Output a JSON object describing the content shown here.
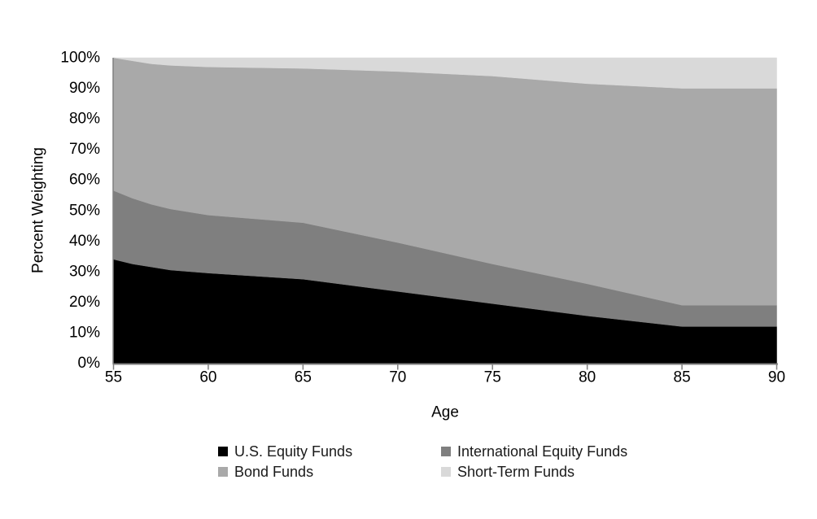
{
  "chart_data": {
    "type": "area",
    "stacked": true,
    "title": "",
    "xlabel": "Age",
    "ylabel": "Percent Weighting",
    "x": [
      55,
      56,
      57,
      58,
      60,
      65,
      70,
      75,
      80,
      85,
      90
    ],
    "x_ticks": [
      55,
      60,
      65,
      70,
      75,
      80,
      85,
      90
    ],
    "y_ticks": [
      "0%",
      "10%",
      "20%",
      "30%",
      "40%",
      "50%",
      "60%",
      "70%",
      "80%",
      "90%",
      "100%"
    ],
    "xlim": [
      55,
      90
    ],
    "ylim": [
      0,
      100
    ],
    "grid": false,
    "legend_position": "bottom",
    "series": [
      {
        "name": "U.S. Equity Funds",
        "color": "#000000",
        "values": [
          34.0,
          32.5,
          31.5,
          30.5,
          29.5,
          27.5,
          23.5,
          19.5,
          15.5,
          12.0,
          12.0
        ]
      },
      {
        "name": "International Equity Funds",
        "color": "#7f7f7f",
        "values": [
          22.5,
          21.5,
          20.5,
          20.0,
          19.0,
          18.5,
          16.0,
          13.0,
          10.5,
          7.0,
          7.0
        ]
      },
      {
        "name": "Bond Funds",
        "color": "#a9a9a9",
        "values": [
          43.5,
          45.0,
          46.0,
          47.0,
          48.5,
          50.5,
          56.0,
          61.5,
          65.5,
          71.0,
          71.0
        ]
      },
      {
        "name": "Short-Term Funds",
        "color": "#d9d9d9",
        "values": [
          0.0,
          1.0,
          2.0,
          2.5,
          3.0,
          3.5,
          4.5,
          6.0,
          8.5,
          10.0,
          10.0
        ]
      }
    ]
  },
  "axis": {
    "line_color": "#808080",
    "text_color": "#000000"
  }
}
